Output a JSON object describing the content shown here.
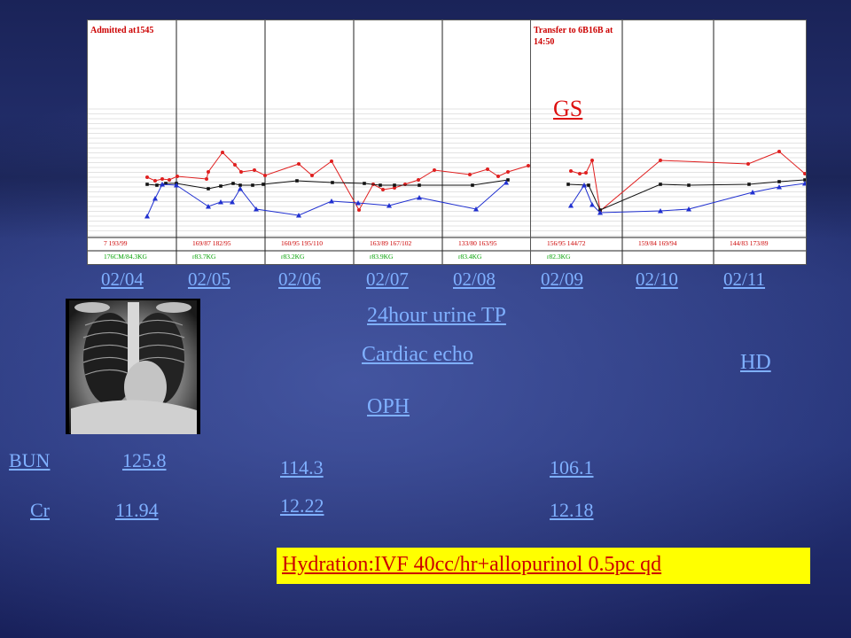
{
  "chart": {
    "left_header": "Admitted at1545",
    "right_header_line1": "Transfer to 6B16B at",
    "right_header_line2": "14:50",
    "left_bp": [
      "7 193/99",
      "169/87 182/95",
      "160/95 195/110",
      "163/89 167/102",
      "133/80 163/95"
    ],
    "right_bp": [
      "156/95 144/72",
      "159/84 169/94",
      "144/83 173/89"
    ],
    "left_wt": [
      "176CM/84.3KG",
      "r83.7KG",
      "r83.2KG",
      "r83.9KG",
      "r83.4KG"
    ],
    "right_wt": [
      "r82.3KG"
    ]
  },
  "gs_label": "GS",
  "dates": [
    "02/04",
    "02/05",
    "02/06",
    "02/07",
    "02/08",
    "02/09",
    "02/10",
    "02/11"
  ],
  "links": {
    "urine": "24hour urine TP",
    "echo": "Cardiac echo",
    "oph": "OPH",
    "hd": "HD"
  },
  "labs": {
    "bun_label": "BUN",
    "cr_label": "Cr",
    "bun_0204": "125.8",
    "cr_0204": "11.94",
    "bun_0206": "114.3",
    "cr_0206": "12.22",
    "bun_0209": "106.1",
    "cr_0209": "12.18"
  },
  "banner": "Hydration:IVF 40cc/hr+allopurinol 0.5pc qd",
  "colors": {
    "red": "#e02020",
    "blue": "#2030d0",
    "black": "#111111",
    "green": "#00a000",
    "header_red": "#cc0000"
  }
}
